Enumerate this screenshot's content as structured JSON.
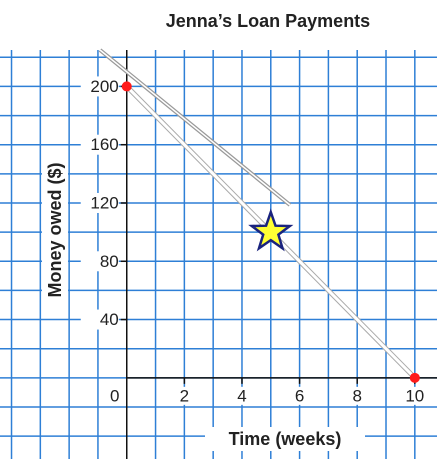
{
  "chart_data": {
    "type": "scatter",
    "title": "Jenna’s Loan Payments",
    "x_label": "Time (weeks)",
    "y_label": "Money owed ($)",
    "series": [
      {
        "name": "points",
        "color": "#ff1a1a",
        "x": [
          0,
          10
        ],
        "values": [
          200,
          0
        ]
      }
    ],
    "star": {
      "x": 5,
      "y": 100,
      "color": "#ffff33"
    },
    "xlim": [
      -4.4,
      10.77
    ],
    "ylim": [
      -55.7,
      225
    ],
    "xticks": [
      0,
      2,
      4,
      6,
      8,
      10
    ],
    "yticks": [
      40,
      80,
      120,
      160,
      200
    ],
    "grid": true,
    "grid_color": "#2e7fd6"
  }
}
